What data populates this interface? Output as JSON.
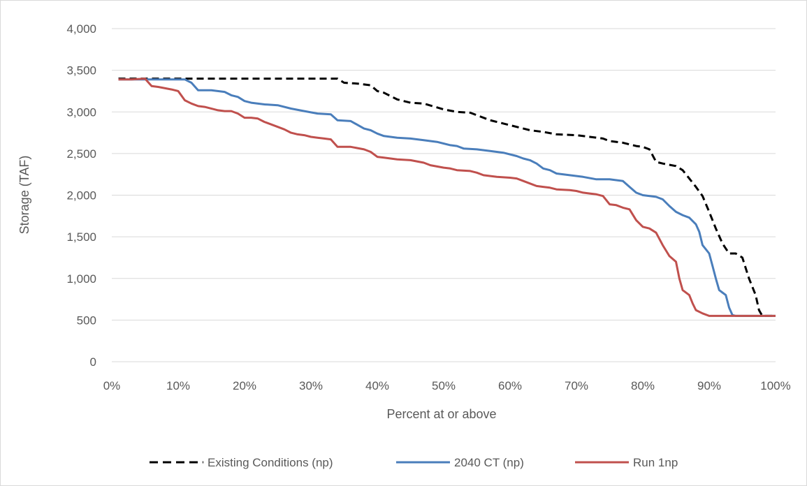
{
  "chart_data": {
    "type": "line",
    "xlabel": "Percent at or above",
    "ylabel": "Storage (TAF)",
    "xlim": [
      0,
      100
    ],
    "ylim": [
      0,
      4000
    ],
    "x_ticks": [
      0,
      10,
      20,
      30,
      40,
      50,
      60,
      70,
      80,
      90,
      100
    ],
    "x_tick_labels": [
      "0%",
      "10%",
      "20%",
      "30%",
      "40%",
      "50%",
      "60%",
      "70%",
      "80%",
      "90%",
      "100%"
    ],
    "y_ticks": [
      0,
      500,
      1000,
      1500,
      2000,
      2500,
      3000,
      3500,
      4000
    ],
    "y_tick_labels": [
      "0",
      "500",
      "1,000",
      "1,500",
      "2,000",
      "2,500",
      "3,000",
      "3,500",
      "4,000"
    ],
    "grid": "horizontal",
    "legend_position": "bottom",
    "series": [
      {
        "name": "Existing Conditions (np)",
        "color": "#000000",
        "style": "dashed",
        "x": [
          1,
          5,
          10,
          20,
          30,
          34,
          35,
          37,
          39,
          40,
          41,
          43,
          45,
          47,
          50,
          52,
          54,
          55,
          57,
          59,
          60,
          62,
          63,
          65,
          67,
          70,
          72,
          74,
          75,
          77,
          79,
          80,
          81,
          82,
          83,
          85,
          86,
          87,
          88,
          89,
          90,
          91,
          92,
          93,
          94,
          95,
          96,
          97,
          97.5,
          98,
          99,
          100
        ],
        "y": [
          3400,
          3400,
          3400,
          3400,
          3400,
          3400,
          3350,
          3340,
          3320,
          3250,
          3230,
          3150,
          3110,
          3100,
          3030,
          3000,
          2990,
          2960,
          2900,
          2860,
          2840,
          2800,
          2780,
          2760,
          2730,
          2720,
          2700,
          2680,
          2650,
          2630,
          2590,
          2580,
          2550,
          2400,
          2380,
          2350,
          2300,
          2200,
          2100,
          1990,
          1800,
          1600,
          1420,
          1300,
          1300,
          1250,
          1000,
          800,
          620,
          550,
          550,
          550
        ]
      },
      {
        "name": "2040 CT (np)",
        "color": "#4a7ebb",
        "style": "solid",
        "x": [
          1,
          5,
          10,
          11,
          12,
          13,
          15,
          17,
          18,
          19,
          20,
          21,
          23,
          25,
          27,
          29,
          31,
          33,
          34,
          36,
          38,
          39,
          40,
          41,
          43,
          45,
          47,
          49,
          51,
          52,
          53,
          55,
          57,
          59,
          61,
          62,
          63,
          64,
          65,
          66,
          67,
          69,
          71,
          73,
          75,
          76,
          77,
          78,
          79,
          80,
          82,
          83,
          84,
          85,
          86,
          87,
          88,
          88.5,
          89,
          90,
          90.5,
          91,
          91.5,
          92,
          92.5,
          93,
          93.5,
          94,
          95,
          100
        ],
        "y": [
          3390,
          3390,
          3390,
          3390,
          3350,
          3260,
          3260,
          3240,
          3200,
          3180,
          3130,
          3110,
          3090,
          3080,
          3040,
          3010,
          2980,
          2970,
          2900,
          2890,
          2800,
          2780,
          2740,
          2710,
          2690,
          2680,
          2660,
          2640,
          2600,
          2590,
          2560,
          2550,
          2530,
          2510,
          2470,
          2440,
          2420,
          2380,
          2320,
          2300,
          2260,
          2240,
          2220,
          2190,
          2190,
          2180,
          2170,
          2100,
          2030,
          2000,
          1980,
          1950,
          1870,
          1800,
          1760,
          1730,
          1650,
          1560,
          1400,
          1300,
          1150,
          1000,
          860,
          830,
          800,
          650,
          560,
          550,
          550,
          550
        ]
      },
      {
        "name": "Run 1np",
        "color": "#c0504d",
        "style": "solid",
        "x": [
          1,
          3,
          5,
          6,
          7,
          9,
          10,
          11,
          12,
          13,
          14,
          16,
          17,
          18,
          19,
          20,
          21,
          22,
          23,
          25,
          26,
          27,
          28,
          29,
          30,
          31,
          32,
          33,
          34,
          36,
          38,
          39,
          40,
          41,
          42,
          43,
          45,
          47,
          48,
          50,
          51,
          52,
          54,
          55,
          56,
          58,
          60,
          61,
          62,
          64,
          65,
          66,
          67,
          69,
          70,
          71,
          72,
          73,
          74,
          75,
          76,
          77,
          78,
          79,
          80,
          81,
          82,
          83,
          84,
          85,
          85.5,
          86,
          87,
          87.5,
          88,
          89,
          90,
          91,
          93,
          100
        ],
        "y": [
          3390,
          3390,
          3400,
          3310,
          3300,
          3270,
          3250,
          3140,
          3100,
          3070,
          3060,
          3020,
          3010,
          3010,
          2980,
          2930,
          2930,
          2920,
          2880,
          2820,
          2790,
          2750,
          2730,
          2720,
          2700,
          2690,
          2680,
          2670,
          2580,
          2580,
          2550,
          2520,
          2460,
          2450,
          2440,
          2430,
          2420,
          2390,
          2360,
          2330,
          2320,
          2300,
          2290,
          2270,
          2240,
          2220,
          2210,
          2200,
          2170,
          2110,
          2100,
          2090,
          2070,
          2060,
          2050,
          2030,
          2020,
          2010,
          1990,
          1890,
          1880,
          1850,
          1830,
          1700,
          1620,
          1600,
          1550,
          1400,
          1270,
          1200,
          1000,
          860,
          800,
          700,
          620,
          580,
          550,
          550,
          550,
          550
        ]
      }
    ]
  }
}
